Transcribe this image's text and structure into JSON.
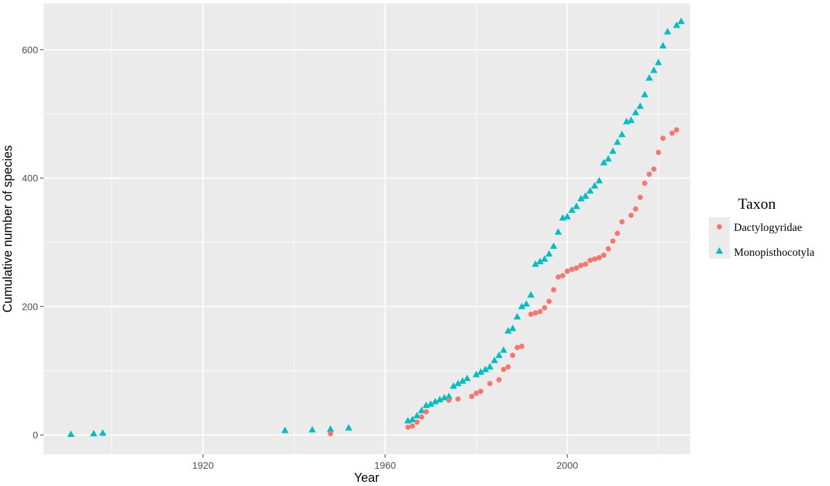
{
  "colors": {
    "panel_bg": "#ebebeb",
    "grid_major": "#ffffff",
    "dactylogyridae": "#f8766d",
    "monopisthocotyla": "#00bfc4"
  },
  "chart_data": {
    "type": "scatter",
    "xlabel": "Year",
    "ylabel": "Cumulative number of species",
    "xlim": [
      1885,
      2027
    ],
    "ylim": [
      -30,
      672
    ],
    "x_ticks": [
      1920,
      1960,
      2000
    ],
    "y_ticks": [
      0,
      200,
      400,
      600
    ],
    "x_tick_labels": [
      "1920",
      "1960",
      "2000"
    ],
    "y_tick_labels": [
      "0",
      "200",
      "400",
      "600"
    ],
    "grid": true,
    "legend": {
      "title": "Taxon",
      "position": "right"
    },
    "series": [
      {
        "name": "Dactylogyridae",
        "marker": "circle",
        "points": [
          [
            1948,
            2
          ],
          [
            1965,
            12
          ],
          [
            1966,
            14
          ],
          [
            1967,
            20
          ],
          [
            1968,
            28
          ],
          [
            1969,
            36
          ],
          [
            1974,
            54
          ],
          [
            1976,
            56
          ],
          [
            1979,
            60
          ],
          [
            1980,
            65
          ],
          [
            1981,
            68
          ],
          [
            1983,
            80
          ],
          [
            1985,
            86
          ],
          [
            1986,
            102
          ],
          [
            1987,
            106
          ],
          [
            1988,
            124
          ],
          [
            1989,
            136
          ],
          [
            1990,
            138
          ],
          [
            1992,
            188
          ],
          [
            1993,
            190
          ],
          [
            1994,
            192
          ],
          [
            1995,
            198
          ],
          [
            1996,
            208
          ],
          [
            1997,
            226
          ],
          [
            1998,
            246
          ],
          [
            1999,
            248
          ],
          [
            2000,
            255
          ],
          [
            2001,
            258
          ],
          [
            2002,
            260
          ],
          [
            2003,
            264
          ],
          [
            2004,
            266
          ],
          [
            2005,
            272
          ],
          [
            2006,
            274
          ],
          [
            2007,
            276
          ],
          [
            2008,
            280
          ],
          [
            2009,
            290
          ],
          [
            2010,
            302
          ],
          [
            2011,
            314
          ],
          [
            2012,
            332
          ],
          [
            2014,
            342
          ],
          [
            2015,
            352
          ],
          [
            2016,
            370
          ],
          [
            2017,
            392
          ],
          [
            2018,
            406
          ],
          [
            2019,
            414
          ],
          [
            2020,
            440
          ],
          [
            2021,
            462
          ],
          [
            2023,
            470
          ],
          [
            2024,
            475
          ]
        ]
      },
      {
        "name": "Monopisthocotyla",
        "marker": "triangle",
        "points": [
          [
            1891,
            1
          ],
          [
            1896,
            2
          ],
          [
            1898,
            3
          ],
          [
            1938,
            7
          ],
          [
            1944,
            8
          ],
          [
            1948,
            9
          ],
          [
            1952,
            11
          ],
          [
            1965,
            22
          ],
          [
            1966,
            24
          ],
          [
            1967,
            30
          ],
          [
            1968,
            38
          ],
          [
            1969,
            46
          ],
          [
            1970,
            48
          ],
          [
            1971,
            52
          ],
          [
            1972,
            55
          ],
          [
            1973,
            58
          ],
          [
            1974,
            60
          ],
          [
            1975,
            76
          ],
          [
            1976,
            80
          ],
          [
            1977,
            84
          ],
          [
            1978,
            88
          ],
          [
            1980,
            94
          ],
          [
            1981,
            98
          ],
          [
            1982,
            102
          ],
          [
            1983,
            106
          ],
          [
            1984,
            116
          ],
          [
            1985,
            124
          ],
          [
            1986,
            132
          ],
          [
            1987,
            162
          ],
          [
            1988,
            166
          ],
          [
            1989,
            184
          ],
          [
            1990,
            200
          ],
          [
            1991,
            204
          ],
          [
            1992,
            218
          ],
          [
            1993,
            266
          ],
          [
            1994,
            270
          ],
          [
            1995,
            274
          ],
          [
            1996,
            282
          ],
          [
            1997,
            294
          ],
          [
            1998,
            316
          ],
          [
            1999,
            338
          ],
          [
            2000,
            340
          ],
          [
            2001,
            350
          ],
          [
            2002,
            356
          ],
          [
            2003,
            368
          ],
          [
            2004,
            372
          ],
          [
            2005,
            380
          ],
          [
            2006,
            388
          ],
          [
            2007,
            396
          ],
          [
            2008,
            424
          ],
          [
            2009,
            430
          ],
          [
            2010,
            442
          ],
          [
            2011,
            456
          ],
          [
            2012,
            468
          ],
          [
            2013,
            488
          ],
          [
            2014,
            490
          ],
          [
            2015,
            502
          ],
          [
            2016,
            512
          ],
          [
            2017,
            530
          ],
          [
            2018,
            556
          ],
          [
            2019,
            568
          ],
          [
            2020,
            580
          ],
          [
            2021,
            606
          ],
          [
            2022,
            628
          ],
          [
            2024,
            638
          ],
          [
            2025,
            644
          ]
        ]
      }
    ]
  }
}
